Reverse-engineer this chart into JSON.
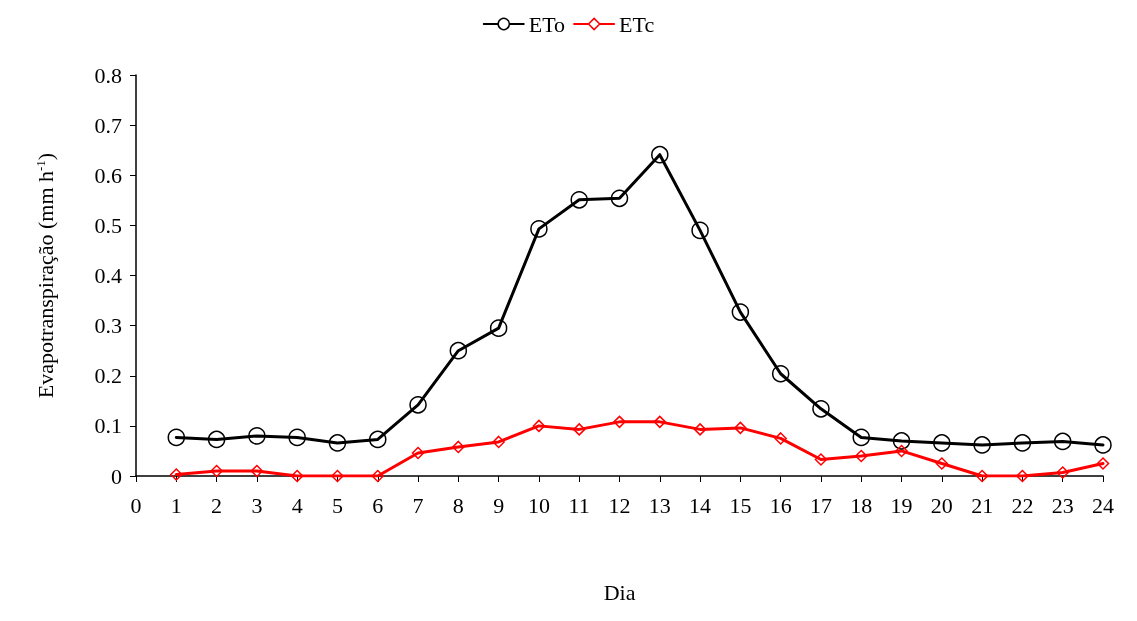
{
  "chart_data": {
    "type": "line",
    "xlabel": "Dia",
    "ylabel": "Evapotranspiração (mm h$^{-1}$)",
    "x": [
      1,
      2,
      3,
      4,
      5,
      6,
      7,
      8,
      9,
      10,
      11,
      12,
      13,
      14,
      15,
      16,
      17,
      18,
      19,
      20,
      21,
      22,
      23,
      24
    ],
    "xlim": [
      0,
      24
    ],
    "xticks": [
      0,
      1,
      2,
      3,
      4,
      5,
      6,
      7,
      8,
      9,
      10,
      11,
      12,
      13,
      14,
      15,
      16,
      17,
      18,
      19,
      20,
      21,
      22,
      23,
      24
    ],
    "ylim": [
      0,
      0.8
    ],
    "yticks": [
      0,
      0.1,
      0.2,
      0.3,
      0.4,
      0.5,
      0.6,
      0.7,
      0.8
    ],
    "grid": false,
    "legend": "top",
    "line_style": "solid",
    "series": [
      {
        "name": "ETo",
        "color": "#000000",
        "marker": "circle",
        "values": [
          0.077,
          0.073,
          0.08,
          0.077,
          0.066,
          0.073,
          0.142,
          0.25,
          0.295,
          0.493,
          0.551,
          0.554,
          0.641,
          0.49,
          0.327,
          0.204,
          0.134,
          0.077,
          0.07,
          0.066,
          0.062,
          0.066,
          0.069,
          0.062
        ]
      },
      {
        "name": "ETc",
        "color": "#ff0000",
        "marker": "diamond",
        "values": [
          0.003,
          0.01,
          0.01,
          0,
          0,
          0,
          0.046,
          0.058,
          0.068,
          0.1,
          0.093,
          0.108,
          0.108,
          0.093,
          0.096,
          0.075,
          0.033,
          0.04,
          0.05,
          0.025,
          0,
          0,
          0.007,
          0.025
        ]
      }
    ]
  }
}
